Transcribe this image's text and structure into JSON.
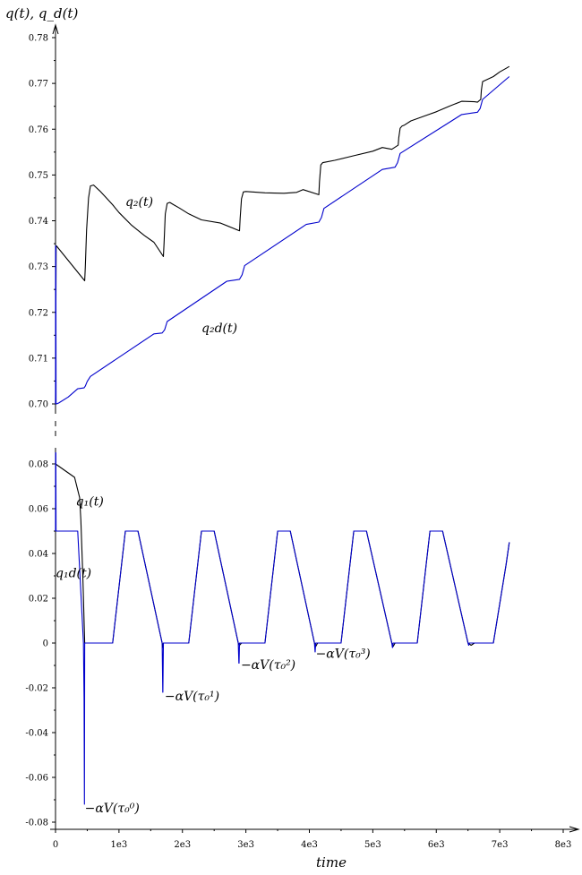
{
  "chart_data": {
    "type": "line",
    "ylabel": "q(t), q_d(t)",
    "xlabel": "time",
    "x_tick_labels": [
      "0",
      "1e3",
      "2e3",
      "3e3",
      "4e3",
      "5e3",
      "6e3",
      "7e3",
      "8e3"
    ],
    "xlim": [
      0,
      8000
    ],
    "colors": {
      "actual": "#000000",
      "desired": "#0000cc"
    },
    "panels": [
      {
        "name": "top",
        "ylim": [
          0.697,
          0.781
        ],
        "y_ticks": [
          0.7,
          0.71,
          0.72,
          0.73,
          0.74,
          0.75,
          0.76,
          0.77,
          0.78
        ],
        "y_tick_labels": [
          "0.70",
          "0.71",
          "0.72",
          "0.73",
          "0.74",
          "0.75",
          "0.76",
          "0.77",
          "0.78"
        ],
        "series": [
          {
            "name": "q2(t)",
            "color": "#000000",
            "x": [
              0,
              10,
              15,
              460,
              470,
              490,
              520,
              550,
              600,
              700,
              800,
              900,
              1000,
              1200,
              1400,
              1550,
              1700,
              1710,
              1730,
              1760,
              1800,
              1850,
              1950,
              2100,
              2300,
              2600,
              2900,
              2910,
              2930,
              2960,
              3000,
              3100,
              3300,
              3600,
              3800,
              3900,
              4150,
              4160,
              4180,
              4210,
              4250,
              4400,
              4700,
              5000,
              5150,
              5300,
              5400,
              5410,
              5430,
              5460,
              5500,
              5600,
              5800,
              6000,
              6200,
              6400,
              6600,
              6650,
              6700,
              6710,
              6730,
              6760,
              6900,
              7000,
              7100,
              7150
            ],
            "y": [
              0.7,
              0.7345,
              0.7345,
              0.7269,
              0.73,
              0.738,
              0.745,
              0.7476,
              0.7478,
              0.7465,
              0.745,
              0.7435,
              0.7418,
              0.739,
              0.7368,
              0.7353,
              0.7322,
              0.735,
              0.7415,
              0.7438,
              0.744,
              0.7436,
              0.7428,
              0.7415,
              0.7402,
              0.7395,
              0.7378,
              0.7405,
              0.7448,
              0.7463,
              0.7464,
              0.7463,
              0.7461,
              0.746,
              0.7462,
              0.7468,
              0.7457,
              0.7485,
              0.7522,
              0.7527,
              0.7528,
              0.7532,
              0.7542,
              0.7552,
              0.756,
              0.7556,
              0.7565,
              0.7582,
              0.7602,
              0.7607,
              0.7609,
              0.7618,
              0.7628,
              0.7638,
              0.765,
              0.7661,
              0.766,
              0.7659,
              0.7665,
              0.7685,
              0.7704,
              0.7706,
              0.7715,
              0.7725,
              0.7733,
              0.7737
            ]
          },
          {
            "name": "q2d(t)",
            "color": "#0000cc",
            "x": [
              0,
              2,
              5,
              8,
              15,
              50,
              200,
              350,
              450,
              470,
              500,
              550,
              1550,
              1680,
              1720,
              1760,
              2700,
              2900,
              2940,
              2980,
              3950,
              4150,
              4190,
              4230,
              5150,
              5350,
              5390,
              5430,
              6400,
              6600,
              6650,
              6690,
              6730,
              7150
            ],
            "y": [
              0.7,
              0.7345,
              0.7345,
              0.7,
              0.7,
              0.7002,
              0.7015,
              0.7033,
              0.7035,
              0.7039,
              0.7049,
              0.706,
              0.7153,
              0.7155,
              0.7162,
              0.718,
              0.7268,
              0.7272,
              0.7282,
              0.7302,
              0.7392,
              0.7397,
              0.7407,
              0.7427,
              0.7512,
              0.7517,
              0.7527,
              0.7547,
              0.7632,
              0.7636,
              0.7637,
              0.7645,
              0.7665,
              0.7715
            ]
          }
        ],
        "annotations": [
          {
            "text": "q₂(t)",
            "x": 1100,
            "y": 0.7442
          },
          {
            "text": "q₂d(t)",
            "x": 2300,
            "y": 0.7166
          }
        ]
      },
      {
        "name": "bottom",
        "ylim": [
          -0.08,
          0.085
        ],
        "y_ticks": [
          -0.08,
          -0.06,
          -0.04,
          -0.02,
          0,
          0.02,
          0.04,
          0.06,
          0.08
        ],
        "y_tick_labels": [
          "-0.08",
          "-0.06",
          "-0.04",
          "-0.02",
          "0",
          "0.02",
          "0.04",
          "0.06",
          "0.08"
        ],
        "series": [
          {
            "name": "q1(t)",
            "color": "#000000",
            "x": [
              0,
              100,
              200,
              300,
              380,
              400,
              430,
              460,
              470,
              900,
              1100,
              1300,
              1680,
              1690,
              1700,
              1750,
              2100,
              2300,
              2500,
              2880,
              2900,
              2930,
              3000,
              3300,
              3500,
              3700,
              4080,
              4100,
              4130,
              4200,
              4500,
              4700,
              4900,
              5300,
              5320,
              5350,
              5400,
              5700,
              5900,
              6100,
              6500,
              6550,
              6600,
              6900,
              7100,
              7150
            ],
            "y": [
              0.08,
              0.078,
              0.076,
              0.074,
              0.065,
              0.055,
              0.03,
              0.0,
              0.0,
              0.0,
              0.05,
              0.05,
              0.0,
              -0.002,
              0.0,
              0.0,
              0.0,
              0.05,
              0.05,
              0.0,
              -0.001,
              0.0,
              0.0,
              0.0,
              0.05,
              0.05,
              0.0,
              -0.0015,
              0.0,
              0.0,
              0.0,
              0.05,
              0.05,
              0.0,
              -0.0015,
              0.0,
              0.0,
              0.0,
              0.05,
              0.05,
              0.0,
              -0.001,
              0.0,
              0.0,
              0.035,
              0.045
            ]
          },
          {
            "name": "q1d(t)",
            "color": "#0000cc",
            "x": [
              0,
              2,
              5,
              8,
              350,
              440,
              450,
              456,
              460,
              900,
              1100,
              1300,
              1680,
              1690,
              1692,
              1700,
              2100,
              2300,
              2500,
              2880,
              2890,
              2892,
              2900,
              3300,
              3500,
              3700,
              4080,
              4090,
              4092,
              4100,
              4500,
              4700,
              4900,
              5300,
              5310,
              5312,
              5320,
              5700,
              5900,
              6100,
              6500,
              6510,
              6512,
              6520,
              6900,
              7100,
              7150
            ],
            "y": [
              0.05,
              0.085,
              0.085,
              0.05,
              0.05,
              0.0,
              -0.025,
              -0.072,
              0.0,
              0.0,
              0.05,
              0.05,
              0.0,
              -0.022,
              -0.022,
              0.0,
              0.0,
              0.05,
              0.05,
              0.0,
              -0.009,
              -0.009,
              0.0,
              0.0,
              0.05,
              0.05,
              0.0,
              -0.004,
              -0.004,
              0.0,
              0.0,
              0.05,
              0.05,
              0.0,
              -0.002,
              -0.002,
              0.0,
              0.0,
              0.05,
              0.05,
              0.0,
              -0.001,
              -0.001,
              0.0,
              0.0,
              0.035,
              0.045
            ]
          }
        ],
        "annotations": [
          {
            "text": "q₁(t)",
            "x": 320,
            "y": 0.0635
          },
          {
            "text": "q₁d(t)",
            "x": 0,
            "y": 0.0315
          },
          {
            "text": "−αV(τ₀⁰)",
            "x": 460,
            "y": -0.0735
          },
          {
            "text": "−αV(τ₀¹)",
            "x": 1720,
            "y": -0.0235
          },
          {
            "text": "−αV(τ₀²)",
            "x": 2920,
            "y": -0.0095
          },
          {
            "text": "−αV(τ₀³)",
            "x": 4100,
            "y": -0.0045
          }
        ]
      }
    ]
  }
}
